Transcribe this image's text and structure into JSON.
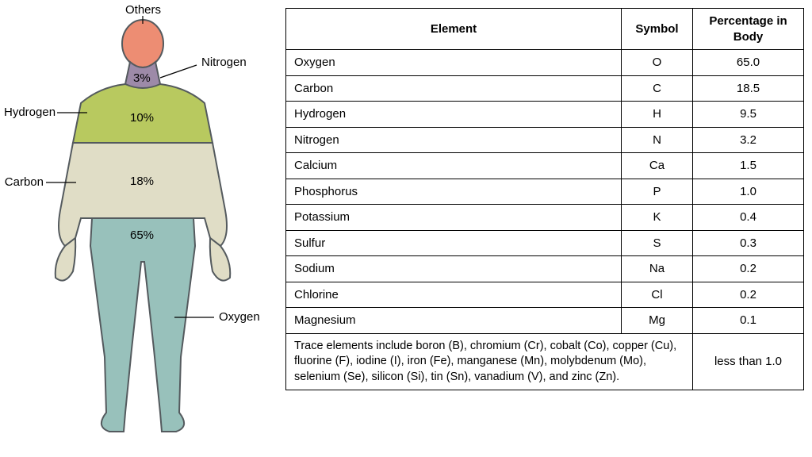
{
  "diagram": {
    "labels": {
      "others": "Others",
      "nitrogen": "Nitrogen",
      "hydrogen": "Hydrogen",
      "carbon": "Carbon",
      "oxygen": "Oxygen"
    },
    "percents": {
      "nitrogen": "3%",
      "hydrogen": "10%",
      "carbon": "18%",
      "oxygen": "65%"
    },
    "colors": {
      "others_head": "#ed8d73",
      "nitrogen_neck": "#9d8aa8",
      "hydrogen_shoulders": "#b8c95f",
      "carbon_torso": "#e0ddc6",
      "oxygen_legs": "#98c1bb",
      "outline": "#545a5e",
      "leader": "#000000"
    },
    "outline_width": 2
  },
  "table": {
    "headers": {
      "element": "Element",
      "symbol": "Symbol",
      "percentage": "Percentage in Body"
    },
    "rows": [
      {
        "element": "Oxygen",
        "symbol": "O",
        "percentage": "65.0"
      },
      {
        "element": "Carbon",
        "symbol": "C",
        "percentage": "18.5"
      },
      {
        "element": "Hydrogen",
        "symbol": "H",
        "percentage": "9.5"
      },
      {
        "element": "Nitrogen",
        "symbol": "N",
        "percentage": "3.2"
      },
      {
        "element": "Calcium",
        "symbol": "Ca",
        "percentage": "1.5"
      },
      {
        "element": "Phosphorus",
        "symbol": "P",
        "percentage": "1.0"
      },
      {
        "element": "Potassium",
        "symbol": "K",
        "percentage": "0.4"
      },
      {
        "element": "Sulfur",
        "symbol": "S",
        "percentage": "0.3"
      },
      {
        "element": "Sodium",
        "symbol": "Na",
        "percentage": "0.2"
      },
      {
        "element": "Chlorine",
        "symbol": "Cl",
        "percentage": "0.2"
      },
      {
        "element": "Magnesium",
        "symbol": "Mg",
        "percentage": "0.1"
      }
    ],
    "trace": {
      "text": "Trace elements include boron (B), chromium (Cr), cobalt (Co), copper (Cu), fluorine (F), iodine (I), iron (Fe), manganese (Mn), molybdenum (Mo), selenium (Se), silicon (Si), tin (Sn), vanadium (V), and zinc (Zn).",
      "percentage": "less than 1.0"
    },
    "border_color": "#000000",
    "font_size": 15
  }
}
